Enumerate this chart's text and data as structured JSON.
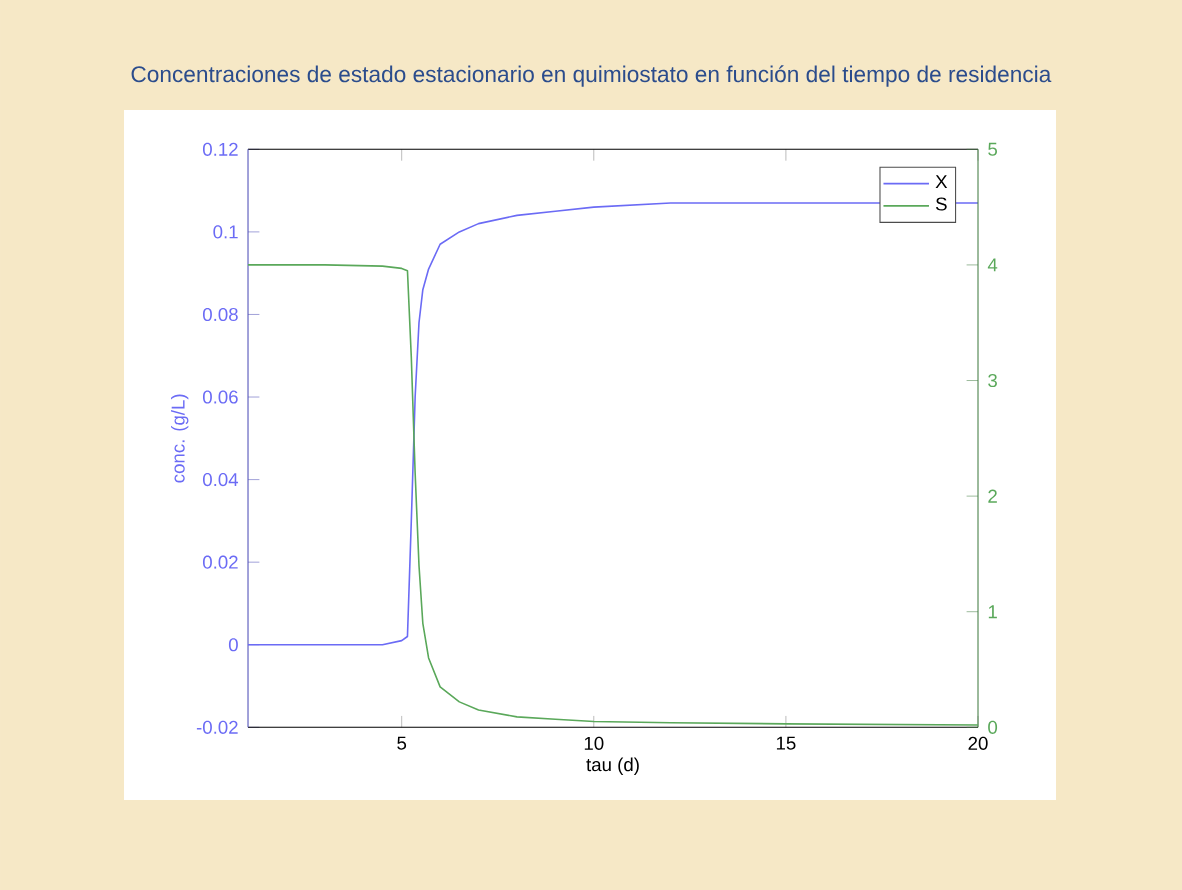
{
  "chart_data": {
    "type": "line",
    "title": "Concentraciones de estado estacionario en quimiostato en función del tiempo de residencia",
    "xlabel": "tau (d)",
    "ylabel": "conc. (g/L)",
    "xlim": [
      1,
      20
    ],
    "xticks": [
      5,
      10,
      15,
      20
    ],
    "ylim": [
      -0.02,
      0.12
    ],
    "yticks": [
      -0.02,
      0,
      0.02,
      0.04,
      0.06,
      0.08,
      0.1,
      0.12
    ],
    "y2lim": [
      0,
      5
    ],
    "y2ticks": [
      0,
      1,
      2,
      3,
      4,
      5
    ],
    "legend": "top right",
    "grid": false,
    "marker": "none",
    "line_style": "solid",
    "series": [
      {
        "name": "X",
        "color": "#6b6bf5",
        "x": [
          1,
          3,
          4.5,
          5.0,
          5.15,
          5.25,
          5.35,
          5.45,
          5.55,
          5.7,
          6.0,
          6.5,
          7,
          8,
          9,
          10,
          12,
          15,
          20
        ],
        "values": [
          0,
          0,
          0,
          0.001,
          0.002,
          0.03,
          0.06,
          0.078,
          0.086,
          0.091,
          0.097,
          0.1,
          0.102,
          0.104,
          0.105,
          0.106,
          0.107,
          0.107,
          0.107
        ]
      },
      {
        "name": "S",
        "color": "#5aa85a",
        "axis": "y2",
        "x": [
          1,
          3,
          4.5,
          5.0,
          5.15,
          5.25,
          5.35,
          5.45,
          5.55,
          5.7,
          6.0,
          6.5,
          7,
          8,
          9,
          10,
          12,
          15,
          20
        ],
        "values": [
          4.0,
          4.0,
          3.99,
          3.97,
          3.95,
          3.2,
          2.2,
          1.4,
          0.9,
          0.6,
          0.35,
          0.22,
          0.15,
          0.09,
          0.07,
          0.05,
          0.04,
          0.03,
          0.02
        ]
      }
    ]
  }
}
